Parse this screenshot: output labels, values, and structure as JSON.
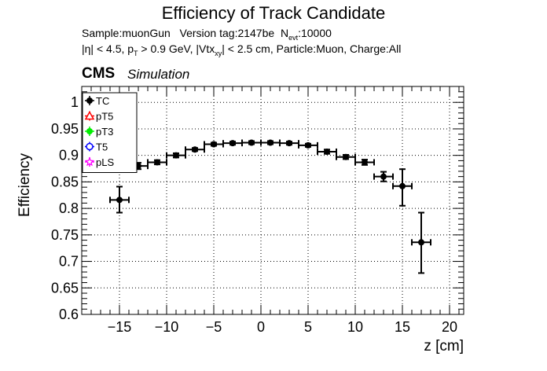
{
  "header": {
    "title": "Efficiency of Track Candidate",
    "meta_line1": {
      "sample": "Sample:muonGun",
      "version": "Version tag:2147be",
      "nevt_symbol": "N",
      "nevt_sub": "evt",
      "nevt_value": ":10000"
    },
    "meta_line2": {
      "part1": "|η| < 4.5, p",
      "pt_sub": "T",
      "part2": " > 0.9 GeV, |Vtx",
      "vtx_sub": "xy",
      "part3": "| < 2.5 cm, Particle:Muon, Charge:All"
    },
    "cms": "CMS",
    "simulation": "Simulation"
  },
  "chart_data": {
    "type": "scatter",
    "title": "Efficiency of Track Candidate",
    "xlabel": "z [cm]",
    "ylabel": "Efficiency",
    "xlim": [
      -19,
      21.5
    ],
    "ylim": [
      0.6,
      1.03
    ],
    "x_ticks": [
      -15,
      -10,
      -5,
      0,
      5,
      10,
      15,
      20
    ],
    "x_tick_labels": [
      "−15",
      "−10",
      "−5",
      "0",
      "5",
      "10",
      "15",
      "20"
    ],
    "y_ticks": [
      0.6,
      0.65,
      0.7,
      0.75,
      0.8,
      0.85,
      0.9,
      0.95,
      1.0
    ],
    "y_tick_labels": [
      "0.6",
      "0.65",
      "0.7",
      "0.75",
      "0.8",
      "0.85",
      "0.9",
      "0.95",
      "1"
    ],
    "grid": true,
    "legend_position": "top-left",
    "legend": [
      {
        "name": "TC",
        "color": "#000000",
        "marker": "circle-filled"
      },
      {
        "name": "pT5",
        "color": "#ff0000",
        "marker": "triangle-open"
      },
      {
        "name": "pT3",
        "color": "#00ee00",
        "marker": "circle-filled"
      },
      {
        "name": "T5",
        "color": "#0000ff",
        "marker": "circle-open"
      },
      {
        "name": "pLS",
        "color": "#ff00ff",
        "marker": "star"
      }
    ],
    "series": [
      {
        "name": "TC",
        "color": "#000000",
        "x": [
          -15,
          -13,
          -11,
          -9,
          -7,
          -5,
          -3,
          -1,
          1,
          3,
          5,
          7,
          9,
          11,
          13,
          15,
          17
        ],
        "x_halfwidth": 1,
        "y": [
          0.816,
          0.88,
          0.887,
          0.9,
          0.911,
          0.921,
          0.923,
          0.924,
          0.924,
          0.923,
          0.919,
          0.907,
          0.897,
          0.887,
          0.86,
          0.842,
          0.736
        ],
        "y_err_up": [
          0.025,
          0.006,
          0.004,
          0.004,
          0.003,
          0.003,
          0.003,
          0.003,
          0.003,
          0.003,
          0.003,
          0.004,
          0.004,
          0.005,
          0.009,
          0.032,
          0.056
        ],
        "y_err_down": [
          0.024,
          0.006,
          0.004,
          0.004,
          0.003,
          0.003,
          0.003,
          0.003,
          0.003,
          0.003,
          0.003,
          0.004,
          0.004,
          0.005,
          0.009,
          0.037,
          0.058
        ]
      }
    ]
  }
}
